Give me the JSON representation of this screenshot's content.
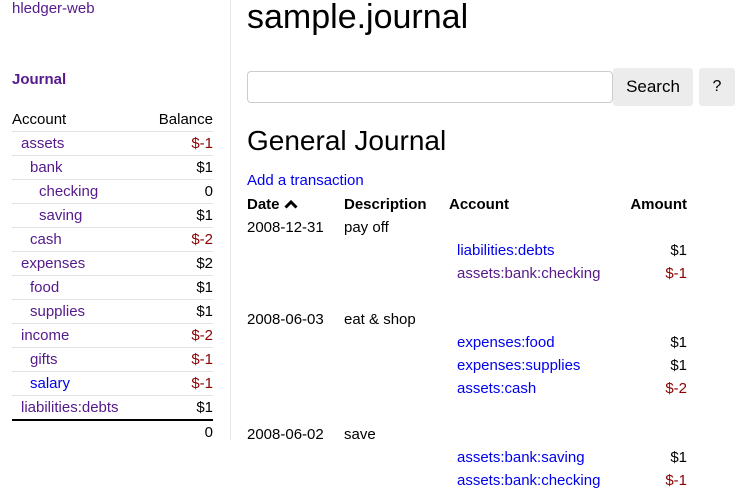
{
  "sidebar": {
    "brand": "hledger-web",
    "journal_link": "Journal",
    "headers": {
      "account": "Account",
      "balance": "Balance"
    },
    "accounts": [
      {
        "name": "assets",
        "balance": "$-1",
        "depth": 0,
        "negative": true
      },
      {
        "name": "bank",
        "balance": "$1",
        "depth": 1,
        "negative": false
      },
      {
        "name": "checking",
        "balance": "0",
        "depth": 2,
        "negative": false
      },
      {
        "name": "saving",
        "balance": "$1",
        "depth": 2,
        "negative": false
      },
      {
        "name": "cash",
        "balance": "$-2",
        "depth": 1,
        "negative": true
      },
      {
        "name": "expenses",
        "balance": "$2",
        "depth": 0,
        "negative": false
      },
      {
        "name": "food",
        "balance": "$1",
        "depth": 1,
        "negative": false
      },
      {
        "name": "supplies",
        "balance": "$1",
        "depth": 1,
        "negative": false
      },
      {
        "name": "income",
        "balance": "$-2",
        "depth": 0,
        "negative": true
      },
      {
        "name": "gifts",
        "balance": "$-1",
        "depth": 1,
        "negative": true
      },
      {
        "name": "salary",
        "balance": "$-1",
        "depth": 1,
        "negative": true,
        "unvisited": true
      },
      {
        "name": "liabilities:debts",
        "balance": "$1",
        "depth": 0,
        "negative": false
      }
    ],
    "total": "0"
  },
  "main": {
    "title": "sample.journal",
    "search": {
      "value": "",
      "placeholder": "",
      "button": "Search",
      "help": "?"
    },
    "journal_title": "General Journal",
    "add_transaction": "Add a transaction",
    "columns": {
      "date": "Date",
      "sort_icon": "chevron-up-icon",
      "description": "Description",
      "account": "Account",
      "amount": "Amount"
    },
    "transactions": [
      {
        "date": "2008-12-31",
        "description": "pay off",
        "postings": [
          {
            "account": "liabilities:debts",
            "amount": "$1",
            "negative": false,
            "visited": false
          },
          {
            "account": "assets:bank:checking",
            "amount": "$-1",
            "negative": true,
            "visited": true
          }
        ]
      },
      {
        "date": "2008-06-03",
        "description": "eat & shop",
        "postings": [
          {
            "account": "expenses:food",
            "amount": "$1",
            "negative": false,
            "visited": false
          },
          {
            "account": "expenses:supplies",
            "amount": "$1",
            "negative": false,
            "visited": false
          },
          {
            "account": "assets:cash",
            "amount": "$-2",
            "negative": true,
            "visited": false
          }
        ]
      },
      {
        "date": "2008-06-02",
        "description": "save",
        "postings": [
          {
            "account": "assets:bank:saving",
            "amount": "$1",
            "negative": false,
            "visited": false
          },
          {
            "account": "assets:bank:checking",
            "amount": "$-1",
            "negative": true,
            "visited": false
          }
        ]
      }
    ]
  },
  "colors": {
    "visited": "#551a8b",
    "link": "#0000ee",
    "negative": "#8b0000"
  }
}
